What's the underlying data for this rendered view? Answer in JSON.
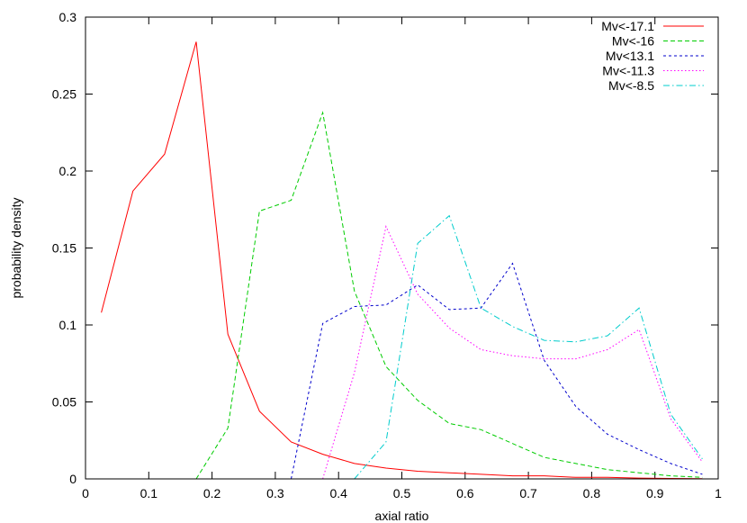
{
  "chart_data": {
    "type": "line",
    "xlabel": "axial ratio",
    "ylabel": "probability density",
    "xlim": [
      0,
      1
    ],
    "ylim": [
      0,
      0.3
    ],
    "xticks": [
      "0",
      "0.1",
      "0.2",
      "0.3",
      "0.4",
      "0.5",
      "0.6",
      "0.7",
      "0.8",
      "0.9",
      "1"
    ],
    "yticks": [
      "0",
      "0.05",
      "0.1",
      "0.15",
      "0.2",
      "0.25",
      "0.3"
    ],
    "grid": false,
    "legend_position": "top-right",
    "series": [
      {
        "name": "Mv<-17.1",
        "color": "#ff0000",
        "dash": "solid",
        "points": [
          [
            0.025,
            0.108
          ],
          [
            0.075,
            0.187
          ],
          [
            0.125,
            0.211
          ],
          [
            0.175,
            0.284
          ],
          [
            0.225,
            0.094
          ],
          [
            0.275,
            0.044
          ],
          [
            0.325,
            0.024
          ],
          [
            0.375,
            0.016
          ],
          [
            0.425,
            0.01
          ],
          [
            0.475,
            0.007
          ],
          [
            0.525,
            0.005
          ],
          [
            0.575,
            0.004
          ],
          [
            0.625,
            0.003
          ],
          [
            0.675,
            0.002
          ],
          [
            0.725,
            0.002
          ],
          [
            0.775,
            0.001
          ],
          [
            0.825,
            0.001
          ],
          [
            0.875,
            0.0005
          ],
          [
            0.925,
            0.0003
          ],
          [
            0.975,
            0.0002
          ]
        ]
      },
      {
        "name": "Mv<-16",
        "color": "#00cc00",
        "dash": "dashed",
        "points": [
          [
            0.175,
            0.0
          ],
          [
            0.225,
            0.033
          ],
          [
            0.275,
            0.174
          ],
          [
            0.325,
            0.181
          ],
          [
            0.375,
            0.238
          ],
          [
            0.425,
            0.122
          ],
          [
            0.475,
            0.073
          ],
          [
            0.525,
            0.051
          ],
          [
            0.575,
            0.036
          ],
          [
            0.625,
            0.032
          ],
          [
            0.675,
            0.023
          ],
          [
            0.725,
            0.014
          ],
          [
            0.775,
            0.01
          ],
          [
            0.825,
            0.006
          ],
          [
            0.875,
            0.004
          ],
          [
            0.925,
            0.002
          ],
          [
            0.975,
            0.001
          ]
        ]
      },
      {
        "name": "Mv<13.1",
        "color": "#0000cc",
        "dash": "short-dashed",
        "points": [
          [
            0.325,
            0.0
          ],
          [
            0.375,
            0.101
          ],
          [
            0.425,
            0.112
          ],
          [
            0.475,
            0.113
          ],
          [
            0.525,
            0.126
          ],
          [
            0.575,
            0.11
          ],
          [
            0.625,
            0.111
          ],
          [
            0.675,
            0.14
          ],
          [
            0.725,
            0.077
          ],
          [
            0.775,
            0.047
          ],
          [
            0.825,
            0.029
          ],
          [
            0.875,
            0.019
          ],
          [
            0.925,
            0.01
          ],
          [
            0.975,
            0.003
          ]
        ]
      },
      {
        "name": "Mv<-11.3",
        "color": "#ff00ff",
        "dash": "dotted",
        "points": [
          [
            0.375,
            0.0
          ],
          [
            0.425,
            0.069
          ],
          [
            0.475,
            0.164
          ],
          [
            0.525,
            0.12
          ],
          [
            0.575,
            0.098
          ],
          [
            0.625,
            0.084
          ],
          [
            0.675,
            0.08
          ],
          [
            0.725,
            0.078
          ],
          [
            0.775,
            0.078
          ],
          [
            0.825,
            0.084
          ],
          [
            0.875,
            0.097
          ],
          [
            0.925,
            0.039
          ],
          [
            0.975,
            0.011
          ]
        ]
      },
      {
        "name": "Mv<-8.5",
        "color": "#00cccc",
        "dash": "dash-dot",
        "points": [
          [
            0.425,
            0.0
          ],
          [
            0.475,
            0.024
          ],
          [
            0.525,
            0.153
          ],
          [
            0.575,
            0.171
          ],
          [
            0.625,
            0.111
          ],
          [
            0.675,
            0.099
          ],
          [
            0.725,
            0.09
          ],
          [
            0.775,
            0.089
          ],
          [
            0.825,
            0.093
          ],
          [
            0.875,
            0.111
          ],
          [
            0.925,
            0.042
          ],
          [
            0.975,
            0.013
          ]
        ]
      }
    ]
  }
}
